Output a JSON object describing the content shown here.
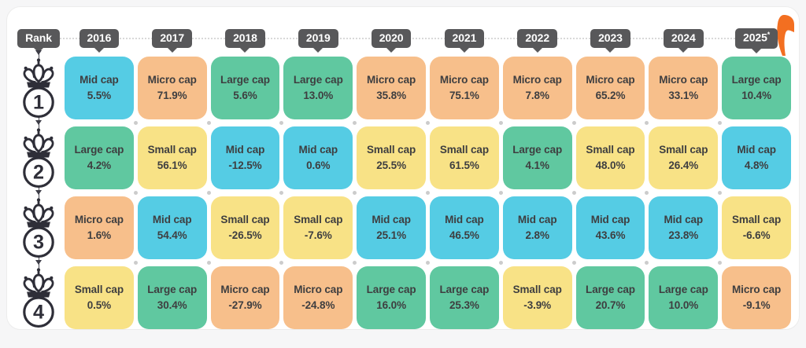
{
  "palette": {
    "page_bg": "#f6f6f7",
    "card_bg": "#ffffff",
    "badge": "#58585a",
    "dot": "#cccccc",
    "cell_text": "#3e3e40",
    "logo_orange": "#f36f21"
  },
  "category_colors": {
    "Mid cap": "#55cce4",
    "Micro cap": "#f7bf8b",
    "Large cap": "#60c8a0",
    "Small cap": "#f8e286"
  },
  "header": {
    "rank_label": "Rank",
    "years": [
      "2016",
      "2017",
      "2018",
      "2019",
      "2020",
      "2021",
      "2022",
      "2023",
      "2024",
      "2025*"
    ]
  },
  "chart_data": {
    "type": "table",
    "title": "Top performing market-cap segment by rank for each year",
    "columns": [
      "2016",
      "2017",
      "2018",
      "2019",
      "2020",
      "2021",
      "2022",
      "2023",
      "2024",
      "2025*"
    ],
    "rows": [
      {
        "rank": "1",
        "cells": [
          {
            "category": "Mid cap",
            "value": 5.5,
            "label": "5.5%"
          },
          {
            "category": "Micro cap",
            "value": 71.9,
            "label": "71.9%"
          },
          {
            "category": "Large cap",
            "value": 5.6,
            "label": "5.6%"
          },
          {
            "category": "Large cap",
            "value": 13.0,
            "label": "13.0%"
          },
          {
            "category": "Micro cap",
            "value": 35.8,
            "label": "35.8%"
          },
          {
            "category": "Micro cap",
            "value": 75.1,
            "label": "75.1%"
          },
          {
            "category": "Micro cap",
            "value": 7.8,
            "label": "7.8%"
          },
          {
            "category": "Micro cap",
            "value": 65.2,
            "label": "65.2%"
          },
          {
            "category": "Micro cap",
            "value": 33.1,
            "label": "33.1%"
          },
          {
            "category": "Large cap",
            "value": 10.4,
            "label": "10.4%"
          }
        ]
      },
      {
        "rank": "2",
        "cells": [
          {
            "category": "Large cap",
            "value": 4.2,
            "label": "4.2%"
          },
          {
            "category": "Small cap",
            "value": 56.1,
            "label": "56.1%"
          },
          {
            "category": "Mid cap",
            "value": -12.5,
            "label": "-12.5%"
          },
          {
            "category": "Mid cap",
            "value": 0.6,
            "label": "0.6%"
          },
          {
            "category": "Small cap",
            "value": 25.5,
            "label": "25.5%"
          },
          {
            "category": "Small cap",
            "value": 61.5,
            "label": "61.5%"
          },
          {
            "category": "Large cap",
            "value": 4.1,
            "label": "4.1%"
          },
          {
            "category": "Small cap",
            "value": 48.0,
            "label": "48.0%"
          },
          {
            "category": "Small cap",
            "value": 26.4,
            "label": "26.4%"
          },
          {
            "category": "Mid cap",
            "value": 4.8,
            "label": "4.8%"
          }
        ]
      },
      {
        "rank": "3",
        "cells": [
          {
            "category": "Micro cap",
            "value": 1.6,
            "label": "1.6%"
          },
          {
            "category": "Mid cap",
            "value": 54.4,
            "label": "54.4%"
          },
          {
            "category": "Small cap",
            "value": -26.5,
            "label": "-26.5%"
          },
          {
            "category": "Small cap",
            "value": -7.6,
            "label": "-7.6%"
          },
          {
            "category": "Mid cap",
            "value": 25.1,
            "label": "25.1%"
          },
          {
            "category": "Mid cap",
            "value": 46.5,
            "label": "46.5%"
          },
          {
            "category": "Mid cap",
            "value": 2.8,
            "label": "2.8%"
          },
          {
            "category": "Mid cap",
            "value": 43.6,
            "label": "43.6%"
          },
          {
            "category": "Mid cap",
            "value": 23.8,
            "label": "23.8%"
          },
          {
            "category": "Small cap",
            "value": -6.6,
            "label": "-6.6%"
          }
        ]
      },
      {
        "rank": "4",
        "cells": [
          {
            "category": "Small cap",
            "value": 0.5,
            "label": "0.5%"
          },
          {
            "category": "Large cap",
            "value": 30.4,
            "label": "30.4%"
          },
          {
            "category": "Micro cap",
            "value": -27.9,
            "label": "-27.9%"
          },
          {
            "category": "Micro cap",
            "value": -24.8,
            "label": "-24.8%"
          },
          {
            "category": "Large cap",
            "value": 16.0,
            "label": "16.0%"
          },
          {
            "category": "Large cap",
            "value": 25.3,
            "label": "25.3%"
          },
          {
            "category": "Small cap",
            "value": -3.9,
            "label": "-3.9%"
          },
          {
            "category": "Large cap",
            "value": 20.7,
            "label": "20.7%"
          },
          {
            "category": "Large cap",
            "value": 10.0,
            "label": "10.0%"
          },
          {
            "category": "Micro cap",
            "value": -9.1,
            "label": "-9.1%"
          }
        ]
      }
    ]
  }
}
